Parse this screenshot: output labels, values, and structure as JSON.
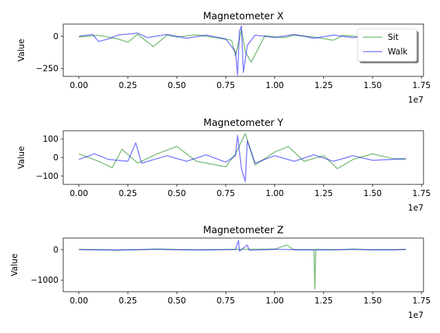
{
  "chart_data": [
    {
      "type": "line",
      "title": "Magnetometer X",
      "xlabel": "",
      "ylabel": "Value",
      "x_offset_label": "1e7",
      "xlim": [
        -0.08,
        1.76
      ],
      "ylim": [
        -310,
        95
      ],
      "x_ticks": [
        0.0,
        0.25,
        0.5,
        0.75,
        1.0,
        1.25,
        1.5,
        1.75
      ],
      "x_tick_labels": [
        "0.00",
        "0.25",
        "0.50",
        "0.75",
        "1.00",
        "1.25",
        "1.50",
        "1.75"
      ],
      "y_ticks": [
        0,
        -250
      ],
      "y_tick_labels": [
        "0",
        "−250"
      ],
      "legend": {
        "placement": "top-right",
        "entries": [
          "Sit",
          "Walk"
        ]
      },
      "series": [
        {
          "name": "Sit",
          "color": "#008000",
          "points": [
            [
              0.0,
              -5
            ],
            [
              0.1,
              8
            ],
            [
              0.2,
              -20
            ],
            [
              0.25,
              -45
            ],
            [
              0.3,
              15
            ],
            [
              0.38,
              -80
            ],
            [
              0.45,
              10
            ],
            [
              0.5,
              -5
            ],
            [
              0.6,
              12
            ],
            [
              0.7,
              -10
            ],
            [
              0.78,
              -30
            ],
            [
              0.8,
              -150
            ],
            [
              0.83,
              50
            ],
            [
              0.85,
              -120
            ],
            [
              0.88,
              -200
            ],
            [
              0.95,
              5
            ],
            [
              1.05,
              -10
            ],
            [
              1.1,
              10
            ],
            [
              1.2,
              -5
            ],
            [
              1.3,
              -30
            ],
            [
              1.35,
              8
            ],
            [
              1.45,
              -5
            ],
            [
              1.5,
              10
            ],
            [
              1.6,
              -5
            ],
            [
              1.67,
              0
            ]
          ]
        },
        {
          "name": "Walk",
          "color": "#0000ff",
          "points": [
            [
              0.0,
              0
            ],
            [
              0.07,
              15
            ],
            [
              0.1,
              -40
            ],
            [
              0.15,
              -20
            ],
            [
              0.2,
              10
            ],
            [
              0.3,
              25
            ],
            [
              0.35,
              -10
            ],
            [
              0.45,
              15
            ],
            [
              0.55,
              -15
            ],
            [
              0.65,
              10
            ],
            [
              0.75,
              -20
            ],
            [
              0.8,
              -120
            ],
            [
              0.81,
              -300
            ],
            [
              0.82,
              40
            ],
            [
              0.83,
              80
            ],
            [
              0.84,
              -280
            ],
            [
              0.86,
              -70
            ],
            [
              0.9,
              10
            ],
            [
              1.0,
              -10
            ],
            [
              1.1,
              15
            ],
            [
              1.2,
              -15
            ],
            [
              1.3,
              10
            ],
            [
              1.4,
              -10
            ],
            [
              1.5,
              10
            ],
            [
              1.6,
              -5
            ],
            [
              1.67,
              0
            ]
          ]
        }
      ]
    },
    {
      "type": "line",
      "title": "Magnetometer Y",
      "xlabel": "",
      "ylabel": "Value",
      "x_offset_label": "1e7",
      "xlim": [
        -0.08,
        1.76
      ],
      "ylim": [
        -145,
        145
      ],
      "x_ticks": [
        0.0,
        0.25,
        0.5,
        0.75,
        1.0,
        1.25,
        1.5,
        1.75
      ],
      "x_tick_labels": [
        "0.00",
        "0.25",
        "0.50",
        "0.75",
        "1.00",
        "1.25",
        "1.50",
        "1.75"
      ],
      "y_ticks": [
        100,
        0,
        -100
      ],
      "y_tick_labels": [
        "100",
        "0",
        "−100"
      ],
      "series": [
        {
          "name": "Sit",
          "color": "#008000",
          "points": [
            [
              0.0,
              20
            ],
            [
              0.1,
              -20
            ],
            [
              0.17,
              -55
            ],
            [
              0.22,
              45
            ],
            [
              0.3,
              -30
            ],
            [
              0.4,
              20
            ],
            [
              0.5,
              60
            ],
            [
              0.6,
              -20
            ],
            [
              0.75,
              -50
            ],
            [
              0.8,
              20
            ],
            [
              0.85,
              130
            ],
            [
              0.9,
              -40
            ],
            [
              1.0,
              30
            ],
            [
              1.07,
              60
            ],
            [
              1.15,
              -20
            ],
            [
              1.25,
              10
            ],
            [
              1.32,
              -60
            ],
            [
              1.4,
              -10
            ],
            [
              1.5,
              20
            ],
            [
              1.6,
              -5
            ],
            [
              1.67,
              -10
            ]
          ]
        },
        {
          "name": "Walk",
          "color": "#0000ff",
          "points": [
            [
              0.0,
              -10
            ],
            [
              0.08,
              20
            ],
            [
              0.15,
              -10
            ],
            [
              0.25,
              -20
            ],
            [
              0.29,
              80
            ],
            [
              0.32,
              -30
            ],
            [
              0.45,
              10
            ],
            [
              0.55,
              -20
            ],
            [
              0.65,
              15
            ],
            [
              0.75,
              -25
            ],
            [
              0.8,
              10
            ],
            [
              0.81,
              120
            ],
            [
              0.83,
              -60
            ],
            [
              0.85,
              -130
            ],
            [
              0.86,
              90
            ],
            [
              0.9,
              -30
            ],
            [
              1.0,
              10
            ],
            [
              1.1,
              -20
            ],
            [
              1.2,
              15
            ],
            [
              1.3,
              -20
            ],
            [
              1.4,
              10
            ],
            [
              1.5,
              -15
            ],
            [
              1.6,
              -10
            ],
            [
              1.67,
              -5
            ]
          ]
        }
      ]
    },
    {
      "type": "line",
      "title": "Magnetometer Z",
      "xlabel": "",
      "ylabel": "Value",
      "x_offset_label": "1e7",
      "xlim": [
        -0.08,
        1.76
      ],
      "ylim": [
        -1380,
        380
      ],
      "x_ticks": [
        0.0,
        0.25,
        0.5,
        0.75,
        1.0,
        1.25,
        1.5,
        1.75
      ],
      "x_tick_labels": [
        "0.00",
        "0.25",
        "0.50",
        "0.75",
        "1.00",
        "1.25",
        "1.50",
        "1.75"
      ],
      "y_ticks": [
        0,
        -1000
      ],
      "y_tick_labels": [
        "0",
        "−1000"
      ],
      "series": [
        {
          "name": "Sit",
          "color": "#008000",
          "points": [
            [
              0.0,
              10
            ],
            [
              0.2,
              -20
            ],
            [
              0.4,
              20
            ],
            [
              0.6,
              -10
            ],
            [
              0.8,
              10
            ],
            [
              1.0,
              15
            ],
            [
              1.06,
              150
            ],
            [
              1.1,
              -10
            ],
            [
              1.2,
              5
            ],
            [
              1.205,
              -1300
            ],
            [
              1.21,
              10
            ],
            [
              1.3,
              -10
            ],
            [
              1.4,
              20
            ],
            [
              1.5,
              -5
            ],
            [
              1.67,
              0
            ]
          ]
        },
        {
          "name": "Walk",
          "color": "#0000ff",
          "points": [
            [
              0.0,
              0
            ],
            [
              0.2,
              -10
            ],
            [
              0.4,
              10
            ],
            [
              0.6,
              -10
            ],
            [
              0.8,
              5
            ],
            [
              0.815,
              300
            ],
            [
              0.82,
              -50
            ],
            [
              0.86,
              150
            ],
            [
              0.87,
              -20
            ],
            [
              1.0,
              10
            ],
            [
              1.2,
              -10
            ],
            [
              1.4,
              5
            ],
            [
              1.6,
              -5
            ],
            [
              1.67,
              10
            ]
          ]
        }
      ]
    }
  ]
}
